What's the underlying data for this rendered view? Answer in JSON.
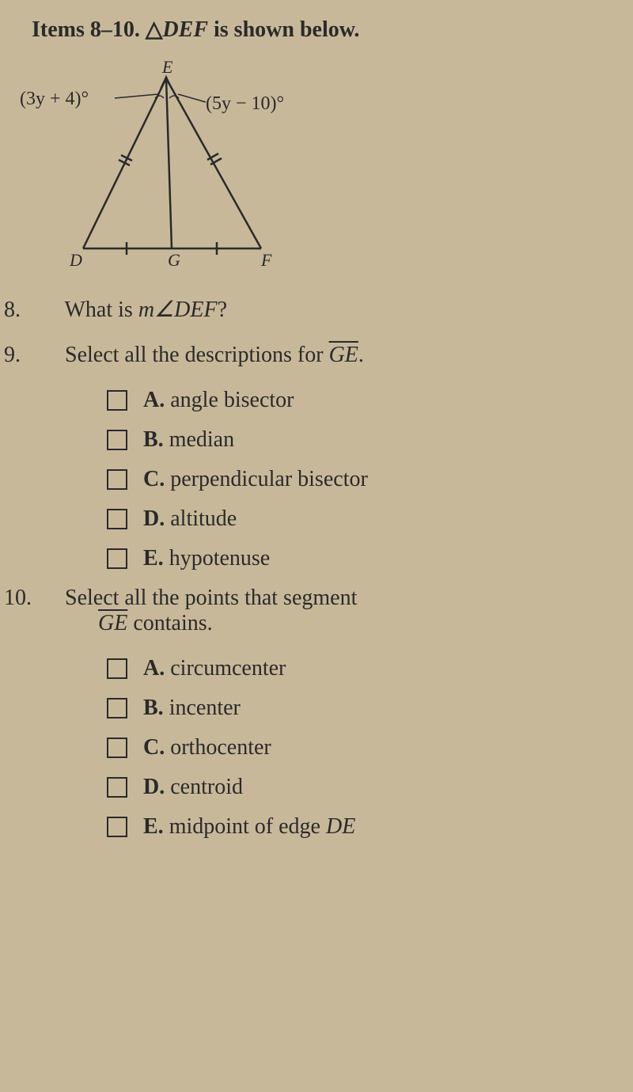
{
  "header": {
    "prefix": "Items 8–10. ",
    "triangle_symbol": "△",
    "triangle_name": "DEF",
    "suffix": " is shown below."
  },
  "diagram": {
    "angle_left": "(3y + 4)°",
    "angle_right": "(5y − 10)°",
    "vertices": {
      "E": "E",
      "D": "D",
      "G": "G",
      "F": "F"
    },
    "stroke_color": "#2a2a2a",
    "stroke_width": 2.5,
    "font_size": 22,
    "font_style": "italic"
  },
  "question8": {
    "number": "8.",
    "text_before": "What is ",
    "angle_prefix": "m∠",
    "angle_name": "DEF",
    "text_after": "?"
  },
  "question9": {
    "number": "9.",
    "text_before": "Select all the descriptions for ",
    "segment": "GE",
    "text_after": ".",
    "options": [
      {
        "label": "A.",
        "text": "angle bisector"
      },
      {
        "label": "B.",
        "text": "median"
      },
      {
        "label": "C.",
        "text": "perpendicular bisector"
      },
      {
        "label": "D.",
        "text": "altitude"
      },
      {
        "label": "E.",
        "text": "hypotenuse"
      }
    ]
  },
  "question10": {
    "number": "10.",
    "text_before": "Select all the points that segment ",
    "segment": "GE",
    "text_after": " contains.",
    "options": [
      {
        "label": "A.",
        "text": "circumcenter"
      },
      {
        "label": "B.",
        "text": "incenter"
      },
      {
        "label": "C.",
        "text": "orthocenter"
      },
      {
        "label": "D.",
        "text": "centroid"
      },
      {
        "label": "E.",
        "text": "midpoint of edge DE"
      }
    ]
  }
}
